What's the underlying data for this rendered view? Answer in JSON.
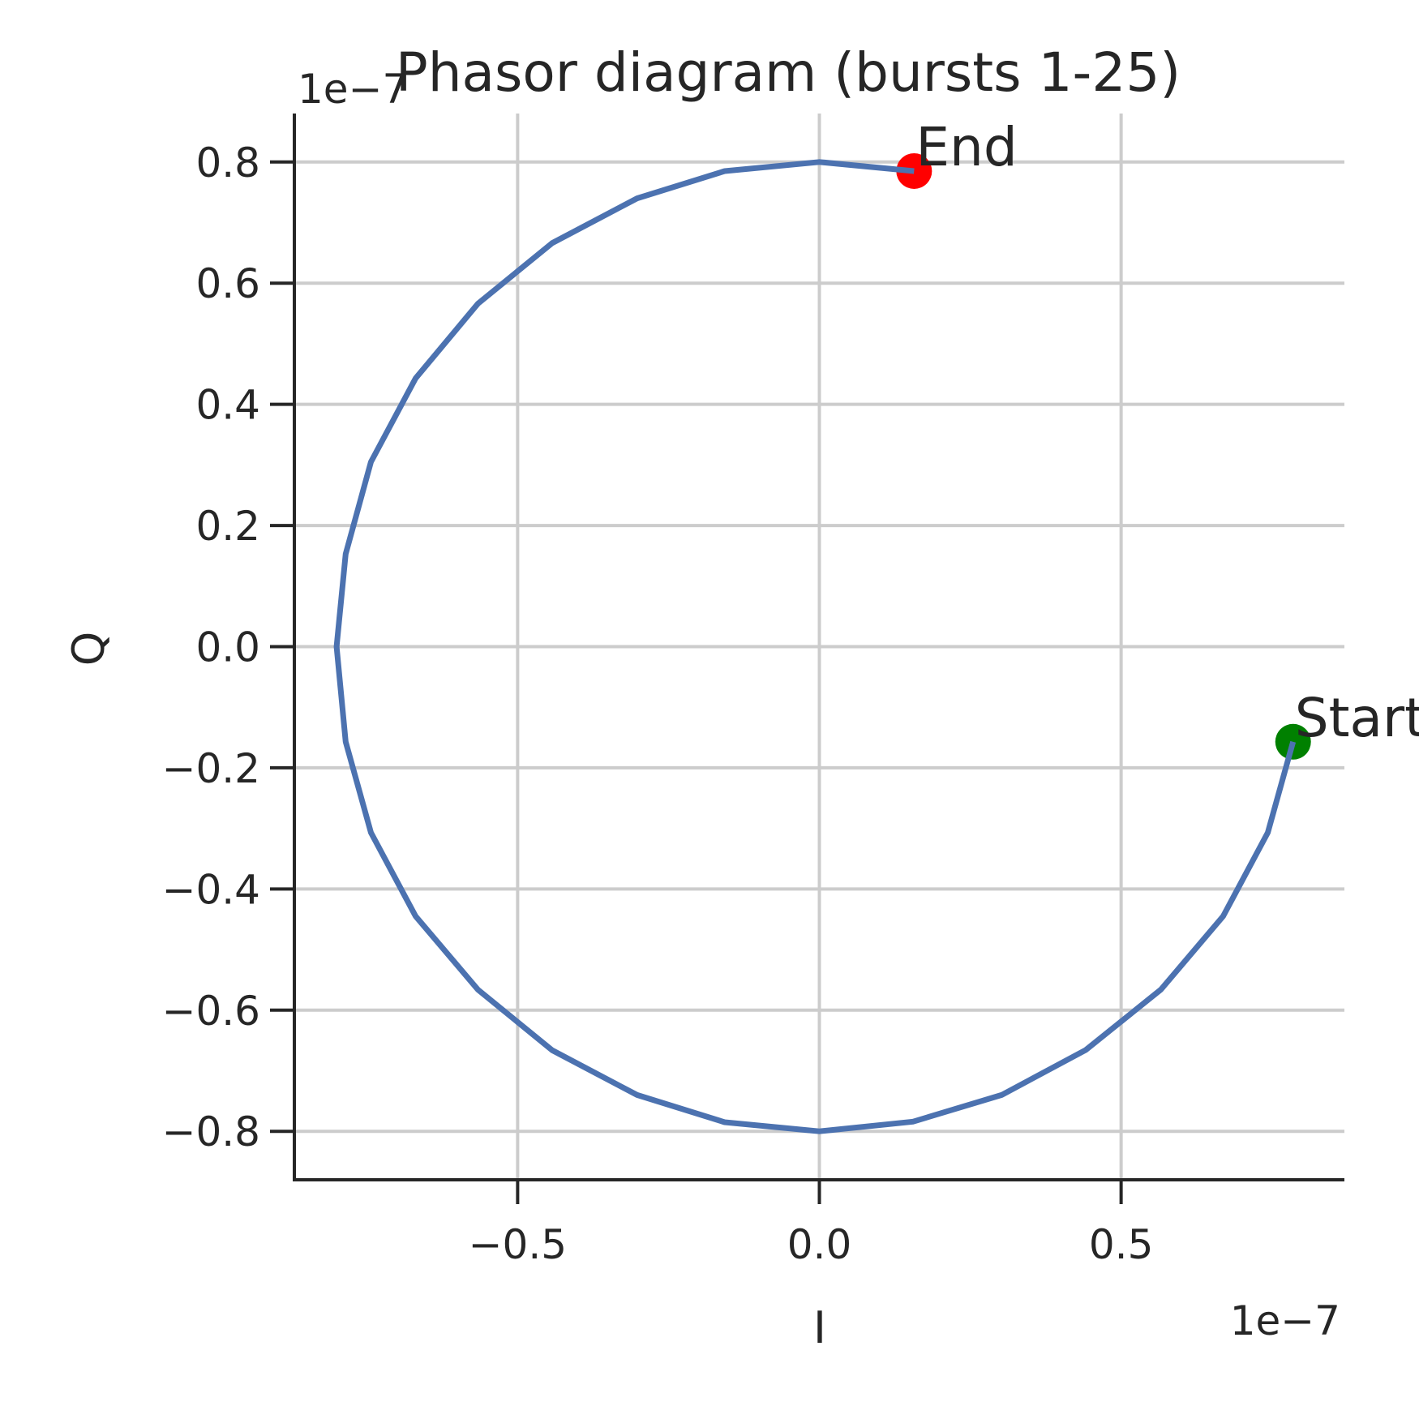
{
  "chart_data": {
    "type": "line",
    "title": "Phasor diagram (bursts 1-25)",
    "xlabel": "I",
    "ylabel": "Q",
    "x_offset_label": "1e−7",
    "y_offset_label": "1e−7",
    "scale": 1e-07,
    "xlim": [
      -0.87,
      0.87
    ],
    "ylim": [
      -0.88,
      0.88
    ],
    "xticks": [
      -0.5,
      0.0,
      0.5
    ],
    "xtick_labels": [
      "−0.5",
      "0.0",
      "0.5"
    ],
    "yticks": [
      -0.8,
      -0.6,
      -0.4,
      -0.2,
      0.0,
      0.2,
      0.4,
      0.6,
      0.8
    ],
    "ytick_labels": [
      "−0.8",
      "−0.6",
      "−0.4",
      "−0.2",
      "0.0",
      "0.2",
      "0.4",
      "0.6",
      "0.8"
    ],
    "grid": true,
    "series": [
      {
        "color": "#4c72b0",
        "x": [
          0.785,
          0.743,
          0.669,
          0.566,
          0.441,
          0.302,
          0.155,
          0.0,
          -0.157,
          -0.302,
          -0.443,
          -0.566,
          -0.669,
          -0.743,
          -0.785,
          -0.8,
          -0.785,
          -0.743,
          -0.669,
          -0.566,
          -0.443,
          -0.302,
          -0.157,
          0.0,
          0.157
        ],
        "y": [
          -0.157,
          -0.307,
          -0.445,
          -0.566,
          -0.666,
          -0.74,
          -0.784,
          -0.8,
          -0.785,
          -0.74,
          -0.666,
          -0.566,
          -0.445,
          -0.307,
          -0.157,
          0.0,
          0.153,
          0.305,
          0.443,
          0.566,
          0.666,
          0.74,
          0.785,
          0.8,
          0.785
        ]
      }
    ],
    "markers": [
      {
        "label": "Start",
        "x": 0.785,
        "y": -0.157,
        "color": "#008000"
      },
      {
        "label": "End",
        "x": 0.157,
        "y": 0.785,
        "color": "#ff0000"
      }
    ]
  }
}
